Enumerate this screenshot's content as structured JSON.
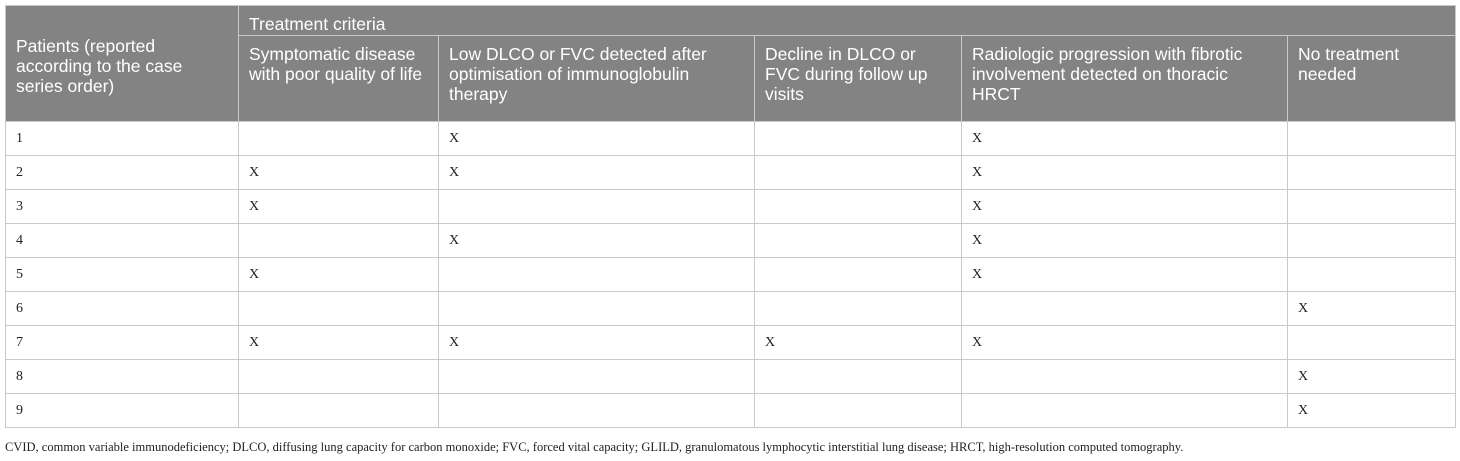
{
  "table": {
    "header": {
      "patients": "Patients (reported according to the case series order)",
      "group": "Treatment criteria",
      "criteria": [
        "Symptomatic disease with poor quality of life",
        "Low DLCO or FVC detected after optimisation of immunoglobulin therapy",
        "Decline in DLCO or FVC during follow up visits",
        "Radiologic progression with fibrotic involvement detected on thoracic HRCT",
        "No treatment needed"
      ]
    },
    "rows": [
      [
        "1",
        "",
        "X",
        "",
        "X",
        ""
      ],
      [
        "2",
        "X",
        "X",
        "",
        "X",
        ""
      ],
      [
        "3",
        "X",
        "",
        "",
        "X",
        ""
      ],
      [
        "4",
        "",
        "X",
        "",
        "X",
        ""
      ],
      [
        "5",
        "X",
        "",
        "",
        "X",
        ""
      ],
      [
        "6",
        "",
        "",
        "",
        "",
        "X"
      ],
      [
        "7",
        "X",
        "X",
        "X",
        "X",
        ""
      ],
      [
        "8",
        "",
        "",
        "",
        "",
        "X"
      ],
      [
        "9",
        "",
        "",
        "",
        "",
        "X"
      ]
    ]
  },
  "footnote": "CVID, common variable immunodeficiency; DLCO, diffusing lung capacity for carbon monoxide; FVC, forced vital capacity; GLILD, granulomatous lymphocytic interstitial lung disease; HRCT, high-resolution computed tomography."
}
